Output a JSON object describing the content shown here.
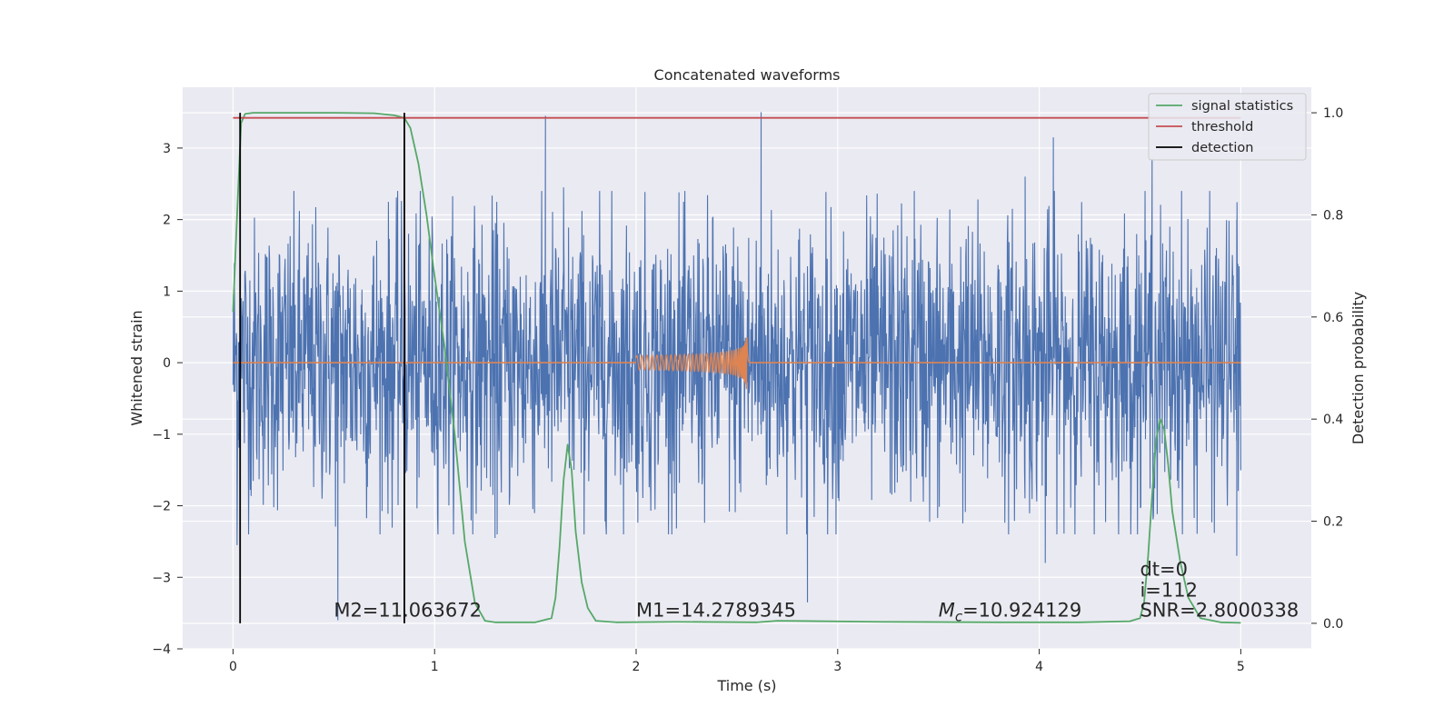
{
  "chart_data": {
    "type": "line",
    "title": "Concatenated waveforms",
    "xlabel": "Time (s)",
    "ylabel": "Whitened strain",
    "y2label": "Detection probability",
    "xlim": [
      -0.25,
      5.35
    ],
    "ylim": [
      -4,
      3.85
    ],
    "y2lim": [
      -0.05,
      1.05
    ],
    "xticks": [
      0,
      1,
      2,
      3,
      4,
      5
    ],
    "yticks": [
      -4,
      -3,
      -2,
      -1,
      0,
      1,
      2,
      3
    ],
    "y2ticks": [
      0.0,
      0.2,
      0.4,
      0.6,
      0.8,
      1.0
    ],
    "xtick_labels": [
      "0",
      "1",
      "2",
      "3",
      "4",
      "5"
    ],
    "ytick_labels": [
      "−4",
      "−3",
      "−2",
      "−1",
      "0",
      "1",
      "2",
      "3"
    ],
    "y2tick_labels": [
      "0.0",
      "0.2",
      "0.4",
      "0.6",
      "0.8",
      "1.0"
    ],
    "grid": true,
    "legend_position": "top-right",
    "colors": {
      "background": "#eaeaf2",
      "noise": "#4c72b0",
      "waveform": "#dd8452",
      "signal_statistics": "#55a868",
      "threshold": "#c44e52",
      "detection": "#000000"
    },
    "series": [
      {
        "name": "signal statistics",
        "axis": "right",
        "x": [
          0.0,
          0.02,
          0.04,
          0.06,
          0.1,
          0.3,
          0.5,
          0.7,
          0.8,
          0.85,
          0.88,
          0.92,
          0.96,
          1.0,
          1.05,
          1.1,
          1.15,
          1.2,
          1.25,
          1.3,
          1.5,
          1.58,
          1.6,
          1.62,
          1.64,
          1.66,
          1.68,
          1.7,
          1.73,
          1.76,
          1.8,
          1.9,
          2.2,
          2.6,
          2.7,
          3.2,
          3.8,
          4.2,
          4.45,
          4.5,
          4.52,
          4.54,
          4.56,
          4.58,
          4.6,
          4.62,
          4.64,
          4.66,
          4.7,
          4.74,
          4.8,
          4.9,
          5.0
        ],
        "values": [
          0.61,
          0.8,
          0.98,
          0.998,
          1.0,
          1.0,
          1.0,
          0.999,
          0.995,
          0.99,
          0.97,
          0.9,
          0.8,
          0.68,
          0.54,
          0.37,
          0.16,
          0.04,
          0.005,
          0.002,
          0.002,
          0.01,
          0.05,
          0.15,
          0.28,
          0.35,
          0.3,
          0.18,
          0.08,
          0.03,
          0.005,
          0.002,
          0.003,
          0.002,
          0.005,
          0.003,
          0.002,
          0.002,
          0.004,
          0.01,
          0.04,
          0.13,
          0.25,
          0.36,
          0.4,
          0.38,
          0.31,
          0.22,
          0.12,
          0.05,
          0.01,
          0.002,
          0.001
        ]
      },
      {
        "name": "threshold",
        "axis": "right",
        "x": [
          0.0,
          5.0
        ],
        "values": [
          0.99,
          0.99
        ]
      },
      {
        "name": "detection",
        "axis": "right",
        "type": "vlines",
        "x": [
          0.035,
          0.85
        ],
        "y_range": [
          0.0,
          1.0
        ]
      },
      {
        "name": "",
        "axis": "left",
        "kind": "noise",
        "x_range": [
          0.0,
          5.0
        ],
        "typical_amplitude": 1.0,
        "peak_values": [
          {
            "x": 0.52,
            "y": -3.6
          },
          {
            "x": 1.55,
            "y": 3.45
          },
          {
            "x": 1.64,
            "y": 2.45
          },
          {
            "x": 2.62,
            "y": 3.5
          },
          {
            "x": 2.85,
            "y": -3.35
          },
          {
            "x": 3.38,
            "y": 2.4
          },
          {
            "x": 3.93,
            "y": 2.6
          },
          {
            "x": 4.07,
            "y": 3.15
          },
          {
            "x": 4.56,
            "y": 2.85
          },
          {
            "x": 4.98,
            "y": 2.0
          },
          {
            "x": 0.02,
            "y": -2.55
          },
          {
            "x": 1.3,
            "y": -2.45
          },
          {
            "x": 4.03,
            "y": -2.8
          },
          {
            "x": 4.98,
            "y": -2.7
          }
        ]
      },
      {
        "name": "",
        "axis": "left",
        "kind": "chirp",
        "x_range": [
          2.0,
          2.56
        ],
        "start_amplitude": 0.1,
        "peak_amplitude": 0.42,
        "merger_time": 2.55
      }
    ],
    "annotations": [
      {
        "text": "M2=11.063672",
        "x": 0.5,
        "y": -3.55
      },
      {
        "text": "M1=14.2789345",
        "x": 2.0,
        "y": -3.55
      },
      {
        "text_main": "M",
        "text_sub": "c",
        "text_rest": "=10.924129",
        "x": 3.5,
        "y": -3.55
      },
      {
        "text": "dt=0",
        "x": 4.5,
        "y": -2.98
      },
      {
        "text": "i=112",
        "x": 4.5,
        "y": -3.27
      },
      {
        "text": "SNR=2.8000338",
        "x": 4.5,
        "y": -3.55
      }
    ]
  }
}
